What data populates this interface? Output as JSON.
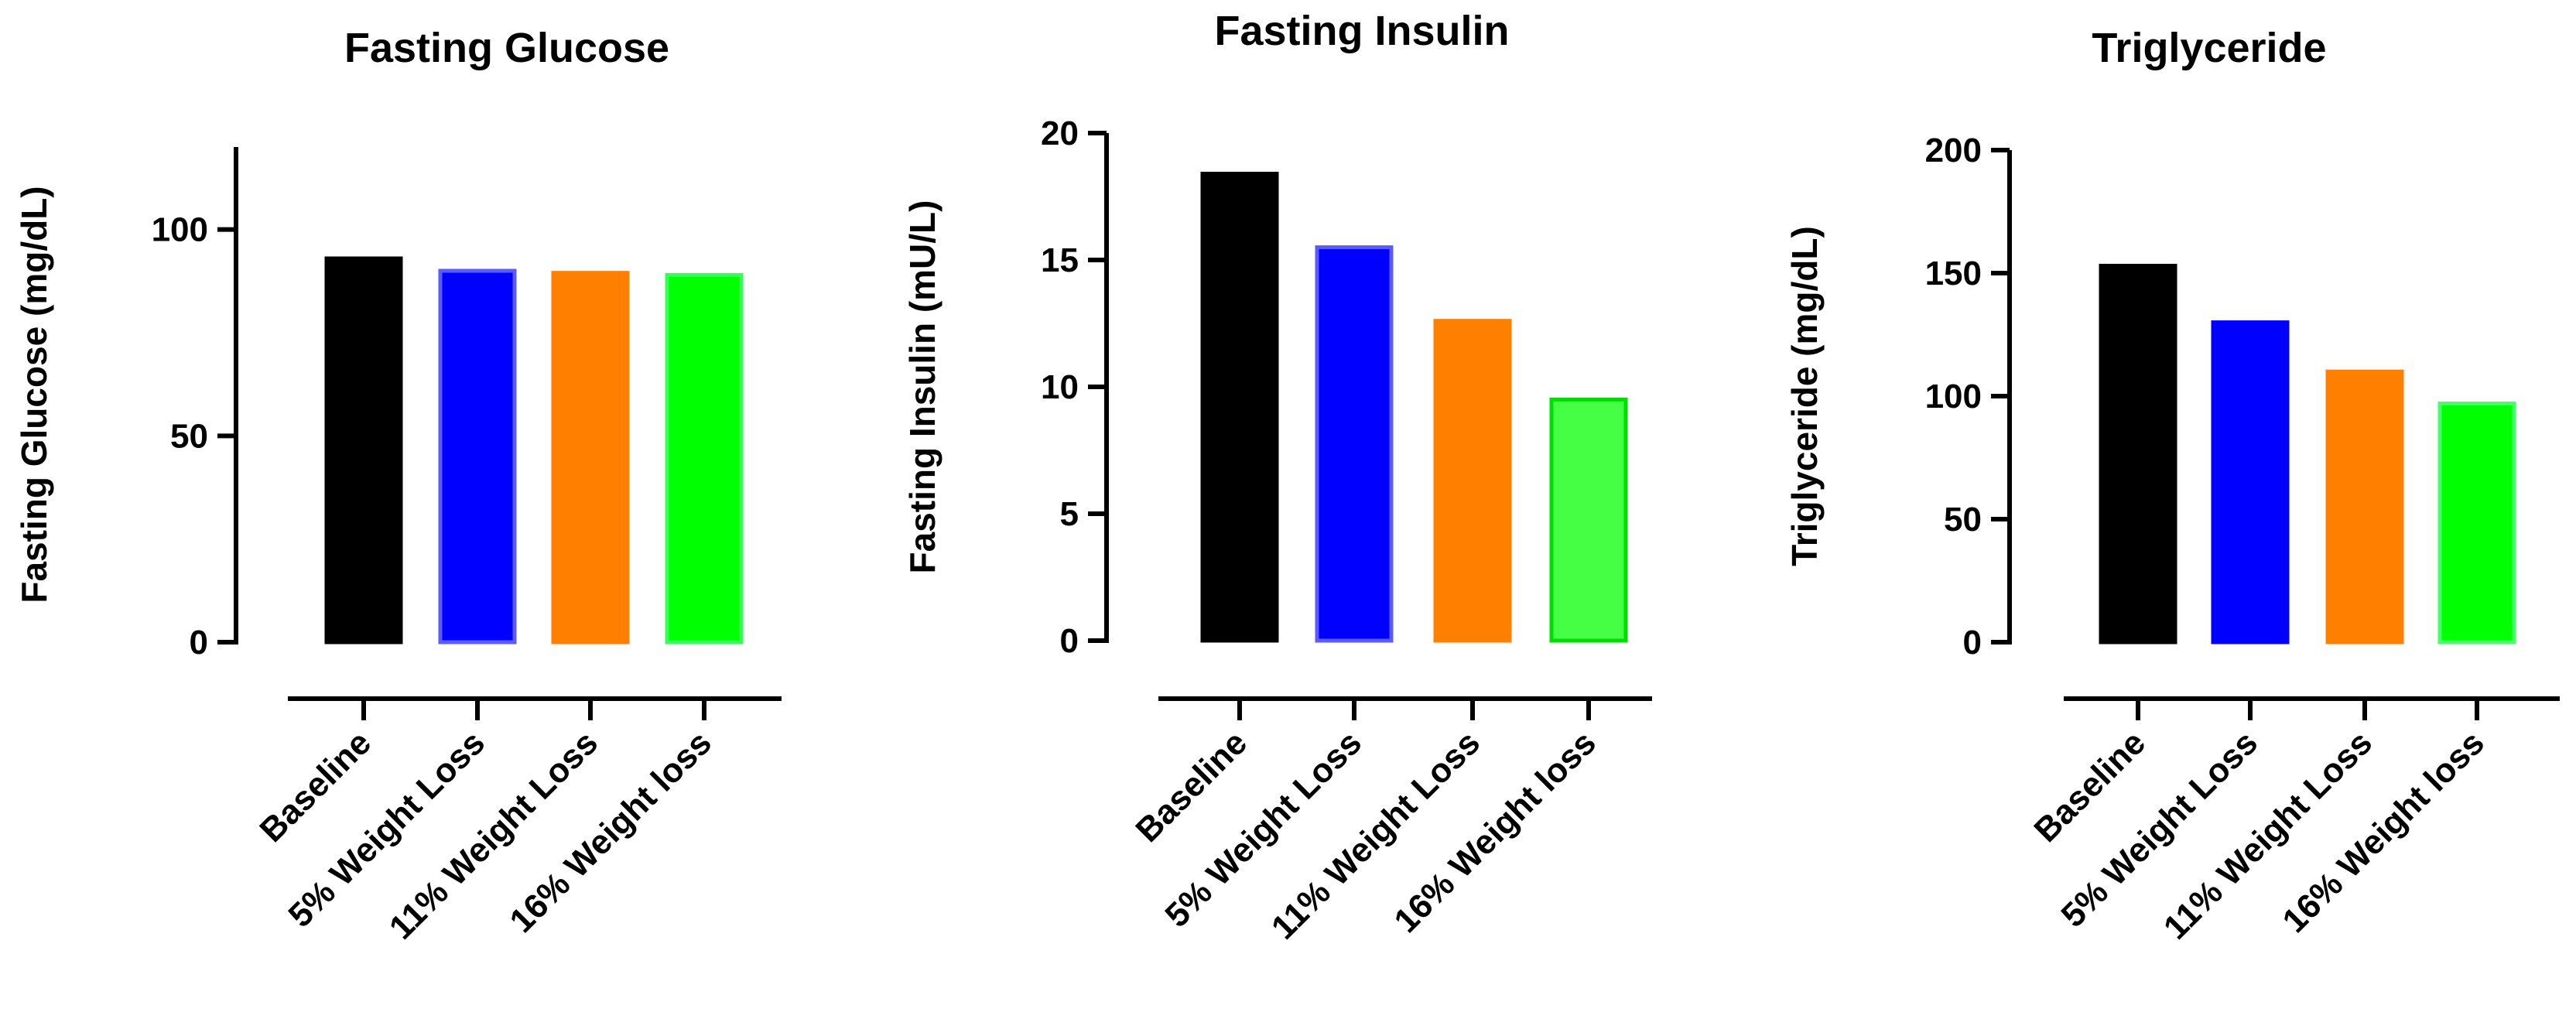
{
  "chart_data": [
    {
      "type": "bar",
      "title": "Fasting Glucose",
      "ylabel": "Fasting Glucose (mg/dL)",
      "xlabel": "",
      "categories": [
        "Baseline",
        "5% Weight Loss",
        "11% Weight Loss",
        "16% Weight loss"
      ],
      "values": [
        93,
        90,
        89.5,
        89
      ],
      "colors": [
        "#000000",
        "#0000ff",
        "#ff7f00",
        "#00ff00"
      ],
      "border_colors": [
        "#000000",
        "#5a5aff",
        "#ff7f00",
        "#33ff55"
      ],
      "ylim": [
        0,
        120
      ],
      "yticks": [
        0,
        50,
        100
      ]
    },
    {
      "type": "bar",
      "title": "Fasting Insulin",
      "ylabel": "Fasting Insulin (mU/L)",
      "xlabel": "",
      "categories": [
        "Baseline",
        "5% Weight Loss",
        "11% Weight Loss",
        "16% Weight loss"
      ],
      "values": [
        18.4,
        15.5,
        12.6,
        9.5
      ],
      "colors": [
        "#000000",
        "#0000ff",
        "#ff7f00",
        "#44ff44"
      ],
      "border_colors": [
        "#000000",
        "#5a5aff",
        "#ff7f00",
        "#00dd00"
      ],
      "ylim": [
        0,
        20
      ],
      "yticks": [
        0,
        5,
        10,
        15,
        20
      ]
    },
    {
      "type": "bar",
      "title": "Triglyceride",
      "ylabel": "Triglyceride (mg/dL)",
      "xlabel": "",
      "categories": [
        "Baseline",
        "5% Weight Loss",
        "11% Weight Loss",
        "16% Weight loss"
      ],
      "values": [
        153,
        130,
        110,
        97
      ],
      "colors": [
        "#000000",
        "#0000ff",
        "#ff7f00",
        "#00ff00"
      ],
      "border_colors": [
        "#000000",
        "#0000ff",
        "#ff7f00",
        "#44ff66"
      ],
      "ylim": [
        0,
        200
      ],
      "yticks": [
        0,
        50,
        100,
        150,
        200
      ]
    }
  ]
}
